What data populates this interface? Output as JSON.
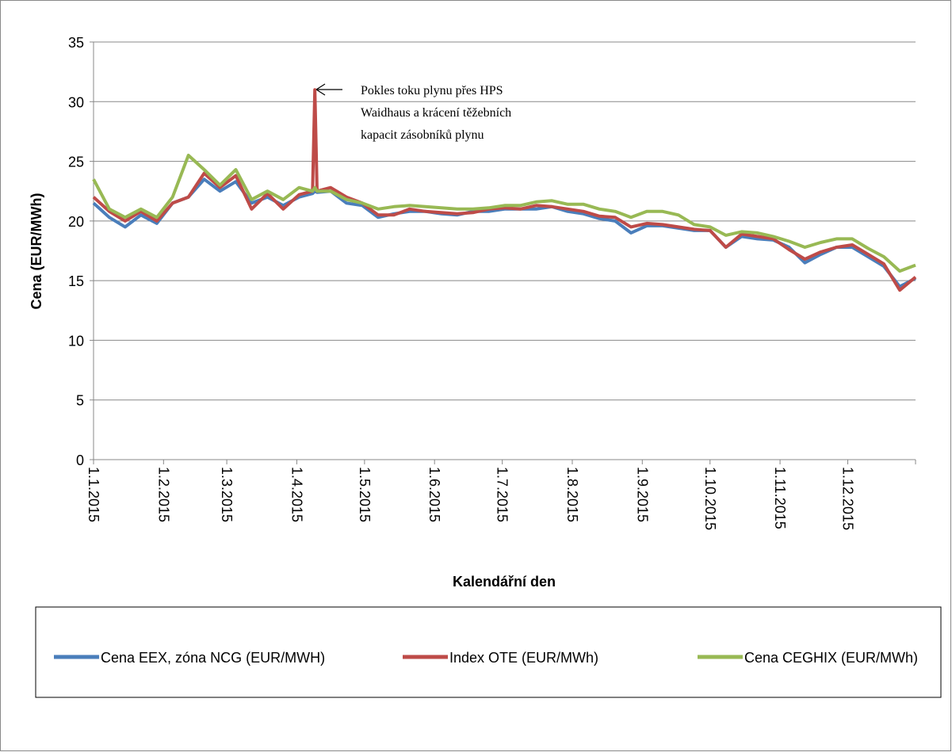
{
  "chart_data": {
    "type": "line",
    "y_label": "Cena (EUR/MWh)",
    "x_label": "Kalendářní den",
    "annotation": [
      "Pokles toku plynu přes HPS",
      "Waidhaus a krácení těžebních",
      "kapacit zásobníků plynu"
    ],
    "x": [
      "1.1.2015",
      "8.1.2015",
      "15.1.2015",
      "22.1.2015",
      "29.1.2015",
      "5.2.2015",
      "12.2.2015",
      "19.2.2015",
      "26.2.2015",
      "5.3.2015",
      "12.3.2015",
      "19.3.2015",
      "26.3.2015",
      "2.4.2015",
      "8.4.2015",
      "9.4.2015",
      "10.4.2015",
      "16.4.2015",
      "23.4.2015",
      "30.4.2015",
      "7.5.2015",
      "14.5.2015",
      "21.5.2015",
      "28.5.2015",
      "4.6.2015",
      "11.6.2015",
      "18.6.2015",
      "25.6.2015",
      "2.7.2015",
      "9.7.2015",
      "16.7.2015",
      "23.7.2015",
      "30.7.2015",
      "6.8.2015",
      "13.8.2015",
      "20.8.2015",
      "27.8.2015",
      "3.9.2015",
      "10.9.2015",
      "17.9.2015",
      "24.9.2015",
      "1.10.2015",
      "8.10.2015",
      "15.10.2015",
      "22.10.2015",
      "29.10.2015",
      "5.11.2015",
      "12.11.2015",
      "19.11.2015",
      "26.11.2015",
      "3.12.2015",
      "10.12.2015",
      "17.12.2015",
      "24.12.2015",
      "31.12.2015"
    ],
    "series": [
      {
        "name": "Cena EEX, zóna NCG (EUR/MWH)",
        "color": "#4a7ebb",
        "values": [
          21.5,
          20.3,
          19.5,
          20.5,
          19.8,
          21.5,
          22,
          23.5,
          22.5,
          23.3,
          21.5,
          22,
          21.3,
          22,
          22.3,
          22.5,
          22.4,
          22.5,
          21.5,
          21.3,
          20.3,
          20.6,
          20.8,
          20.8,
          20.6,
          20.5,
          20.8,
          20.8,
          21,
          21,
          21,
          21.2,
          20.8,
          20.6,
          20.2,
          20,
          19,
          19.6,
          19.6,
          19.4,
          19.2,
          19.2,
          17.8,
          18.7,
          18.5,
          18.4,
          17.8,
          16.5,
          17.2,
          17.8,
          17.8,
          17,
          16.2,
          14.5,
          15.2
        ]
      },
      {
        "name": "Index OTE (EUR/MWh)",
        "color": "#be4b48",
        "values": [
          22,
          20.8,
          20,
          20.8,
          20,
          21.5,
          22,
          24,
          22.8,
          23.8,
          21,
          22.3,
          21,
          22.2,
          22.5,
          31,
          22.5,
          22.8,
          22,
          21.5,
          20.5,
          20.5,
          21,
          20.8,
          20.7,
          20.6,
          20.7,
          21,
          21.1,
          21,
          21.3,
          21.2,
          21,
          20.8,
          20.4,
          20.3,
          19.5,
          19.8,
          19.7,
          19.5,
          19.3,
          19.2,
          17.8,
          18.9,
          18.7,
          18.5,
          17.6,
          16.8,
          17.4,
          17.8,
          18,
          17.2,
          16.4,
          14.2,
          15.3
        ]
      },
      {
        "name": "Cena CEGHIX (EUR/MWh)",
        "color": "#98b954",
        "values": [
          23.5,
          21,
          20.3,
          21,
          20.3,
          22,
          25.5,
          24.3,
          23,
          24.3,
          21.8,
          22.5,
          21.8,
          22.8,
          22.5,
          22.8,
          22.5,
          22.5,
          21.8,
          21.5,
          21,
          21.2,
          21.3,
          21.2,
          21.1,
          21,
          21,
          21.1,
          21.3,
          21.3,
          21.6,
          21.7,
          21.4,
          21.4,
          21,
          20.8,
          20.3,
          20.8,
          20.8,
          20.5,
          19.7,
          19.5,
          18.8,
          19.1,
          19,
          18.7,
          18.3,
          17.8,
          18.2,
          18.5,
          18.5,
          17.7,
          17,
          15.8,
          16.3
        ]
      }
    ],
    "xlim": [
      "1.1.2015",
      "31.12.2015"
    ],
    "xticks": [
      "1.1.2015",
      "1.2.2015",
      "1.3.2015",
      "1.4.2015",
      "1.5.2015",
      "1.6.2015",
      "1.7.2015",
      "1.8.2015",
      "1.9.2015",
      "1.10.2015",
      "1.11.2015",
      "1.12.2015"
    ],
    "ylim": [
      0,
      35
    ],
    "yticks": [
      0,
      5,
      10,
      15,
      20,
      25,
      30,
      35
    ],
    "grid": true
  }
}
